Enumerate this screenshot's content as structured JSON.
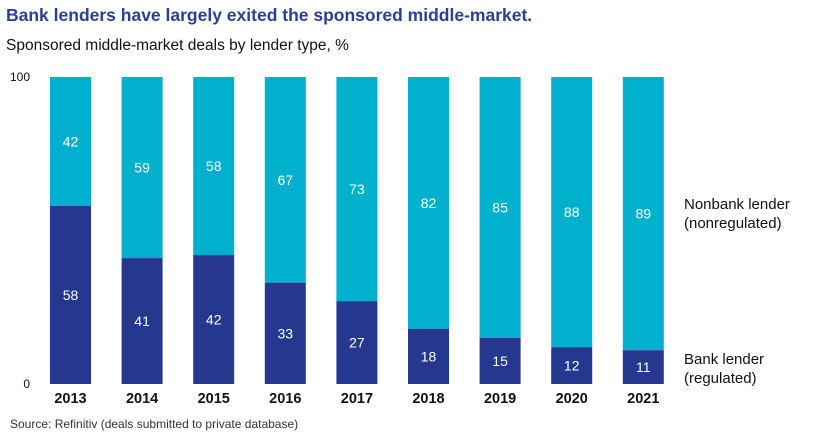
{
  "title": "Bank lenders have largely exited the sponsored middle-market.",
  "subtitle": "Sponsored middle-market deals by lender type, %",
  "source": "Source: Refinitiv (deals submitted to private database)",
  "colors": {
    "bank": "#25378e",
    "nonbank": "#00b0cc",
    "title": "#2b3f95"
  },
  "chart_data": {
    "type": "bar",
    "stacked": true,
    "categories": [
      "2013",
      "2014",
      "2015",
      "2016",
      "2017",
      "2018",
      "2019",
      "2020",
      "2021"
    ],
    "series": [
      {
        "name": "Bank lender (regulated)",
        "values": [
          58,
          41,
          42,
          33,
          27,
          18,
          15,
          12,
          11
        ]
      },
      {
        "name": "Nonbank lender (nonregulated)",
        "values": [
          42,
          59,
          58,
          67,
          73,
          82,
          85,
          88,
          89
        ]
      }
    ],
    "ylim": [
      0,
      100
    ],
    "yticks": [
      "0",
      "100"
    ],
    "legend": {
      "nonbank": [
        "Nonbank lender",
        "(nonregulated)"
      ],
      "bank": [
        "Bank lender",
        "(regulated)"
      ]
    },
    "legend_position": "right"
  }
}
